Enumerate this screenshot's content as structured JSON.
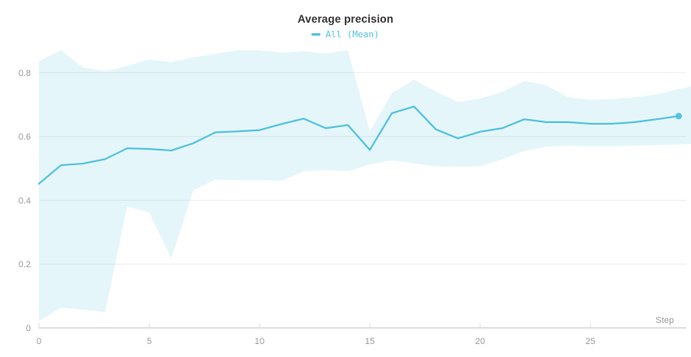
{
  "chart_data": {
    "type": "line",
    "title": "Average precision",
    "xlabel": "Step",
    "ylabel": "",
    "legend": [
      {
        "label": "All (Mean)",
        "color": "#54c3e0"
      }
    ],
    "legend_position": "top-center",
    "grid": "horizontal",
    "x": [
      0,
      1,
      2,
      3,
      4,
      5,
      6,
      7,
      8,
      9,
      10,
      11,
      12,
      13,
      14,
      15,
      16,
      17,
      18,
      19,
      20,
      21,
      22,
      23,
      24,
      25,
      26,
      27,
      28,
      29
    ],
    "series": [
      {
        "name": "All (Mean)",
        "color": "#54c3e0",
        "values": [
          0.452,
          0.51,
          0.515,
          0.529,
          0.563,
          0.561,
          0.556,
          0.579,
          0.613,
          0.616,
          0.62,
          0.639,
          0.656,
          0.626,
          0.636,
          0.558,
          0.673,
          0.694,
          0.622,
          0.594,
          0.615,
          0.626,
          0.654,
          0.645,
          0.645,
          0.64,
          0.64,
          0.645,
          0.654,
          0.664
        ]
      }
    ],
    "band": {
      "name": "min-max-range",
      "series": "All",
      "top": [
        0.836,
        0.871,
        0.816,
        0.805,
        0.821,
        0.842,
        0.833,
        0.848,
        0.859,
        0.871,
        0.87,
        0.863,
        0.867,
        0.86,
        0.871,
        0.617,
        0.736,
        0.778,
        0.74,
        0.708,
        0.719,
        0.74,
        0.774,
        0.76,
        0.723,
        0.715,
        0.717,
        0.723,
        0.732,
        0.749
      ],
      "bottom": [
        0.021,
        0.063,
        0.057,
        0.049,
        0.381,
        0.361,
        0.218,
        0.431,
        0.465,
        0.463,
        0.463,
        0.461,
        0.491,
        0.495,
        0.491,
        0.512,
        0.525,
        0.516,
        0.506,
        0.505,
        0.506,
        0.529,
        0.555,
        0.568,
        0.571,
        0.569,
        0.569,
        0.571,
        0.573,
        0.575
      ]
    },
    "x_ticks": [
      0,
      5,
      10,
      15,
      20,
      25
    ],
    "y_ticks": [
      0,
      0.2,
      0.4,
      0.6,
      0.8
    ],
    "xlim": [
      0,
      29.6
    ],
    "ylim": [
      0,
      0.9
    ],
    "colors": {
      "line": "#54c3e0",
      "band_fill": "rgba(83,193,223,0.15)",
      "grid": "#ededed",
      "axis": "#e0e0e0",
      "tick": "#dcdcdc",
      "tick_label": "#9b9b9b",
      "title": "#363636"
    }
  }
}
